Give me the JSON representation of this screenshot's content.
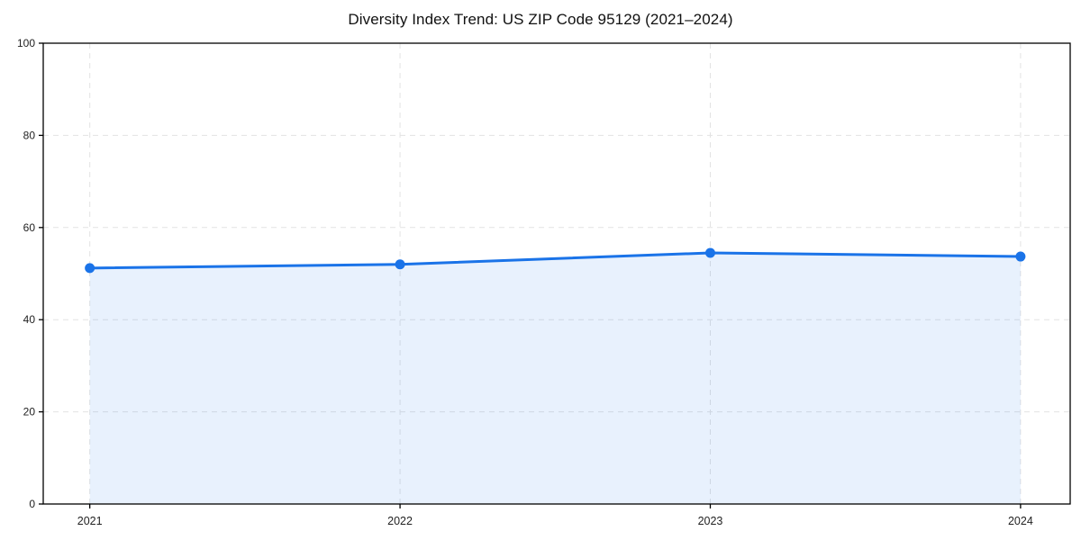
{
  "chart_data": {
    "type": "line",
    "title": "Diversity Index Trend: US ZIP Code 95129 (2021–2024)",
    "x": [
      2021,
      2022,
      2023,
      2024
    ],
    "xtick_labels": [
      "2021",
      "2022",
      "2023",
      "2024"
    ],
    "series": [
      {
        "name": "Diversity Index",
        "values": [
          51.2,
          52.0,
          54.5,
          53.7
        ]
      }
    ],
    "ylim": [
      0,
      100
    ],
    "xlim": [
      2020.85,
      2024.16
    ],
    "yticks": [
      0,
      20,
      40,
      60,
      80,
      100
    ],
    "grid": "dashed-both-axes",
    "legend": "none",
    "area_filled_between_first_and_last_point": true,
    "colors": {
      "line": "#1a73e8",
      "marker": "#1a73e8",
      "area_fill": "#1a73e8",
      "area_opacity": "0.10",
      "grid": "#e3e3e3",
      "axis": "#000000",
      "tick_label": "#222222",
      "title": "#111111",
      "background": "#ffffff"
    }
  }
}
